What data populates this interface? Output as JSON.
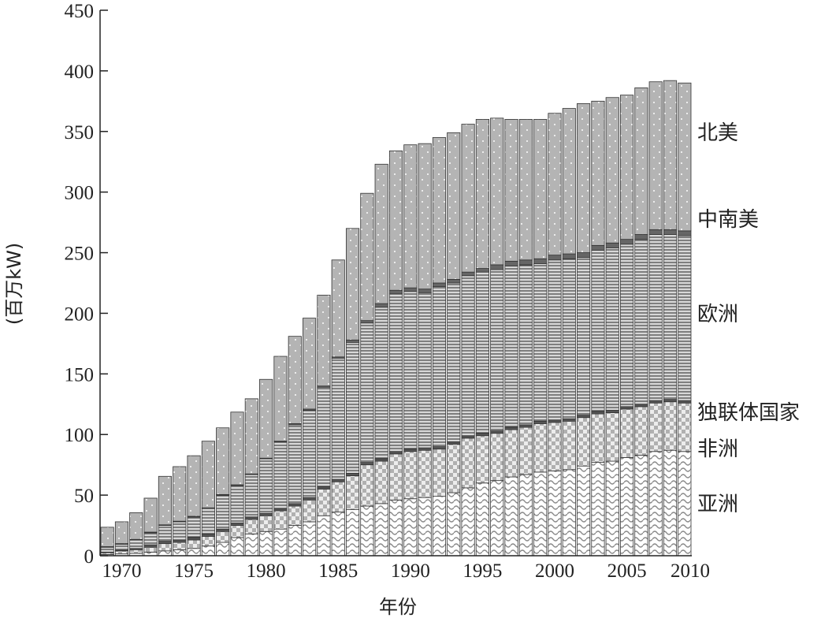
{
  "chart_data": {
    "type": "bar",
    "stacked": true,
    "xlabel": "年份",
    "ylabel": "(百万kW)",
    "ylim": [
      0,
      450
    ],
    "yticks": [
      "0",
      "50",
      "100",
      "150",
      "200",
      "250",
      "300",
      "350",
      "400",
      "450"
    ],
    "xticks": [
      "1970",
      "1975",
      "1980",
      "1985",
      "1990",
      "1995",
      "2000",
      "2005",
      "2010"
    ],
    "grid": false,
    "legend": "inline-right",
    "years": [
      1969,
      1970,
      1971,
      1972,
      1973,
      1974,
      1975,
      1976,
      1977,
      1978,
      1979,
      1980,
      1981,
      1982,
      1983,
      1984,
      1985,
      1986,
      1987,
      1988,
      1989,
      1990,
      1991,
      1992,
      1993,
      1994,
      1995,
      1996,
      1997,
      1998,
      1999,
      2000,
      2001,
      2002,
      2003,
      2004,
      2005,
      2006,
      2007,
      2008,
      2009
    ],
    "series": [
      {
        "name": "亚洲",
        "values": [
          1,
          1.5,
          2,
          3,
          4,
          5,
          6,
          8,
          11,
          15,
          18,
          20,
          22,
          25,
          28,
          33,
          36,
          38,
          41,
          43,
          46,
          47,
          48,
          49,
          52,
          56,
          60,
          62,
          65,
          67,
          69,
          70,
          71,
          74,
          77,
          78,
          81,
          83,
          86,
          87,
          86
        ]
      },
      {
        "name": "非洲",
        "values": [
          1.5,
          2.5,
          3,
          4,
          6,
          6,
          7,
          8,
          9,
          10,
          12,
          13,
          15,
          16,
          18,
          22,
          25,
          28,
          34,
          35,
          38,
          39,
          39,
          39,
          40,
          41,
          39,
          39,
          39,
          39,
          40,
          40,
          40,
          40,
          40,
          40,
          40,
          40,
          40,
          40,
          40
        ]
      },
      {
        "name": "独联体国家",
        "values": [
          0.5,
          0.5,
          1,
          2,
          2,
          2,
          2,
          2,
          2,
          2,
          2,
          2,
          2,
          2,
          2,
          2,
          2,
          2,
          2,
          2,
          2,
          2,
          2,
          2,
          2,
          2,
          2,
          2,
          2,
          2,
          2,
          2,
          2,
          2,
          2,
          2,
          2,
          2,
          2,
          2,
          2
        ]
      },
      {
        "name": "欧洲",
        "values": [
          4,
          5,
          7,
          10,
          13,
          15,
          17,
          21,
          28,
          31,
          35,
          45,
          55,
          65,
          72,
          82,
          100,
          108,
          115,
          125,
          130,
          130,
          128,
          132,
          131,
          132,
          133,
          133,
          133,
          132,
          130,
          132,
          132,
          130,
          133,
          134,
          134,
          136,
          137,
          136,
          136
        ]
      },
      {
        "name": "中南美",
        "values": [
          0.5,
          0.5,
          0.5,
          0.5,
          0.5,
          0.5,
          0.5,
          0.5,
          0.5,
          0.5,
          0.5,
          0.5,
          0.5,
          1,
          1,
          1,
          1,
          2,
          2,
          3,
          3,
          3,
          3,
          3,
          3,
          3,
          3,
          4,
          4,
          4,
          4,
          4,
          4,
          4,
          4,
          4,
          4,
          4,
          4,
          4,
          4
        ]
      },
      {
        "name": "北美",
        "values": [
          16,
          18,
          22,
          28,
          40,
          45,
          50,
          55,
          55,
          60,
          62,
          65,
          70,
          72,
          75,
          75,
          80,
          92,
          105,
          115,
          115,
          118,
          120,
          120,
          121,
          122,
          123,
          121,
          117,
          116,
          115,
          117,
          120,
          123,
          119,
          120,
          119,
          121,
          122,
          123,
          122
        ]
      }
    ]
  }
}
